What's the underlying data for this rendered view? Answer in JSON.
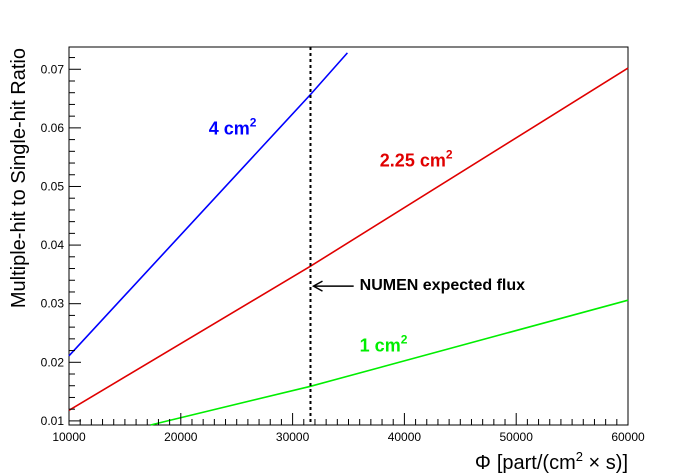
{
  "chart_data": {
    "type": "line",
    "title": "",
    "xlabel_parts": {
      "phi": "Φ",
      "prefix": "[part/(cm",
      "sup": "2",
      "times": " × s)]"
    },
    "ylabel": "Multiple-hit to Single-hit Ratio",
    "xlim": [
      10000,
      60000
    ],
    "ylim": [
      0.0093,
      0.0738
    ],
    "x_ticks": [
      10000,
      20000,
      30000,
      40000,
      50000,
      60000
    ],
    "x_tick_labels": [
      "10000",
      "20000",
      "30000",
      "40000",
      "50000",
      "60000"
    ],
    "y_ticks": [
      0.01,
      0.02,
      0.03,
      0.04,
      0.05,
      0.06,
      0.07
    ],
    "y_tick_labels": [
      "0.01",
      "0.02",
      "0.03",
      "0.04",
      "0.05",
      "0.06",
      "0.07"
    ],
    "grid": false,
    "series": [
      {
        "name_base": "4 cm",
        "name_sup": "2",
        "color": "#0000ff",
        "x": [
          10000,
          31600,
          34900
        ],
        "y": [
          0.0211,
          0.0657,
          0.0728
        ],
        "label_at": [
          22500,
          0.0589
        ]
      },
      {
        "name_base": "2.25 cm",
        "name_sup": "2",
        "color": "#e00000",
        "x": [
          10000,
          31600,
          60000
        ],
        "y": [
          0.0118,
          0.0364,
          0.0702
        ],
        "label_at": [
          37800,
          0.0534
        ]
      },
      {
        "name_base": "1 cm",
        "name_sup": "2",
        "color": "#00ee00",
        "x": [
          17300,
          31600,
          60000
        ],
        "y": [
          0.0093,
          0.0159,
          0.0306
        ],
        "label_at": [
          36000,
          0.0218
        ]
      }
    ],
    "vline": {
      "x": 31600,
      "color": "#000000"
    },
    "annotation": {
      "text": "NUMEN expected flux",
      "arrow_to": [
        31600,
        0.033
      ],
      "text_at": [
        36000,
        0.0323
      ]
    }
  }
}
